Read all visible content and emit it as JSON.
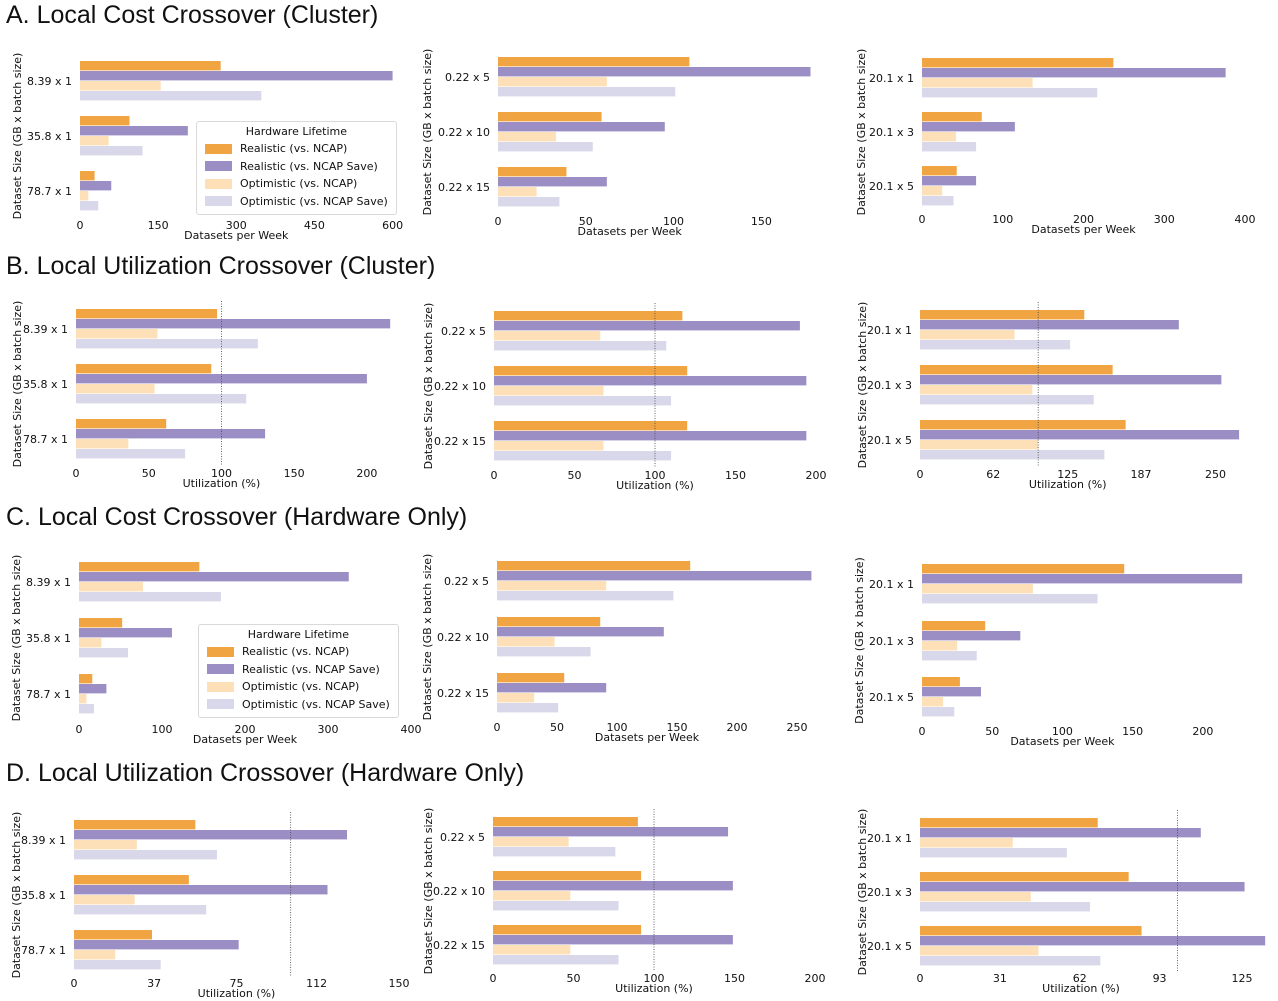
{
  "colors": {
    "realistic_ncap": "#f0a542",
    "realistic_ncap_save": "#9b8ec4",
    "optimistic_ncap": "#fde0b8",
    "optimistic_ncap_save": "#d9d8ea"
  },
  "rows": [
    {
      "title": "A. Local Cost Crossover (Cluster)"
    },
    {
      "title": "B. Local Utilization Crossover (Cluster)"
    },
    {
      "title": "C. Local Cost Crossover (Hardware Only)"
    },
    {
      "title": "D. Local Utilization Crossover (Hardware Only)"
    }
  ],
  "legend": {
    "title": "Hardware Lifetime",
    "items": [
      {
        "label": "Realistic (vs. NCAP)",
        "color": "#f0a542"
      },
      {
        "label": "Realistic (vs. NCAP Save)",
        "color": "#9b8ec4"
      },
      {
        "label": "Optimistic (vs. NCAP)",
        "color": "#fde0b8"
      },
      {
        "label": "Optimistic (vs. NCAP Save)",
        "color": "#d9d8ea"
      }
    ]
  },
  "chart_data": [
    {
      "panel": "A1",
      "type": "bar",
      "orientation": "horizontal",
      "categories": [
        "8.39 x 1",
        "35.8 x 1",
        "78.7 x 1"
      ],
      "series": [
        {
          "name": "Realistic (vs. NCAP)",
          "values": [
            270,
            95,
            28
          ]
        },
        {
          "name": "Realistic (vs. NCAP Save)",
          "values": [
            600,
            207,
            60
          ]
        },
        {
          "name": "Optimistic (vs. NCAP)",
          "values": [
            155,
            55,
            16
          ]
        },
        {
          "name": "Optimistic (vs. NCAP Save)",
          "values": [
            348,
            120,
            35
          ]
        }
      ],
      "xlabel": "Datasets per Week",
      "ylabel": "Dataset Size (GB x batch size)",
      "xlim": [
        0,
        620
      ],
      "xticks": [
        0,
        150,
        300,
        450,
        600
      ],
      "xtick_labels": [
        "0",
        "150",
        "300",
        "450",
        "600"
      ]
    },
    {
      "panel": "A2",
      "type": "bar",
      "orientation": "horizontal",
      "categories": [
        "0.22 x 5",
        "0.22 x 10",
        "0.22 x 15"
      ],
      "series": [
        {
          "name": "Realistic (vs. NCAP)",
          "values": [
            109,
            59,
            39
          ]
        },
        {
          "name": "Realistic (vs. NCAP Save)",
          "values": [
            178,
            95,
            62
          ]
        },
        {
          "name": "Optimistic (vs. NCAP)",
          "values": [
            62,
            33,
            22
          ]
        },
        {
          "name": "Optimistic (vs. NCAP Save)",
          "values": [
            101,
            54,
            35
          ]
        }
      ],
      "xlabel": "Datasets per Week",
      "ylabel": "Dataset Size (GB x batch size)",
      "xlim": [
        0,
        180
      ],
      "xticks": [
        0,
        50,
        100,
        150
      ],
      "xtick_labels": [
        "0",
        "50",
        "100",
        "150"
      ]
    },
    {
      "panel": "A3",
      "type": "bar",
      "orientation": "horizontal",
      "categories": [
        "20.1 x 1",
        "20.1 x 3",
        "20.1 x 5"
      ],
      "series": [
        {
          "name": "Realistic (vs. NCAP)",
          "values": [
            237,
            74,
            43
          ]
        },
        {
          "name": "Realistic (vs. NCAP Save)",
          "values": [
            376,
            115,
            67
          ]
        },
        {
          "name": "Optimistic (vs. NCAP)",
          "values": [
            137,
            42,
            25
          ]
        },
        {
          "name": "Optimistic (vs. NCAP Save)",
          "values": [
            217,
            67,
            39
          ]
        }
      ],
      "xlabel": "Datasets per Week",
      "ylabel": "Dataset Size (GB x batch size)",
      "xlim": [
        0,
        400
      ],
      "xticks": [
        0,
        100,
        200,
        300,
        400
      ],
      "xtick_labels": [
        "0",
        "100",
        "200",
        "300",
        "400"
      ]
    },
    {
      "panel": "B1",
      "type": "bar",
      "orientation": "horizontal",
      "categories": [
        "8.39 x 1",
        "35.8 x 1",
        "78.7 x 1"
      ],
      "series": [
        {
          "name": "Realistic (vs. NCAP)",
          "values": [
            97,
            93,
            62
          ]
        },
        {
          "name": "Realistic (vs. NCAP Save)",
          "values": [
            216,
            200,
            130
          ]
        },
        {
          "name": "Optimistic (vs. NCAP)",
          "values": [
            56,
            54,
            36
          ]
        },
        {
          "name": "Optimistic (vs. NCAP Save)",
          "values": [
            125,
            117,
            75
          ]
        }
      ],
      "xlabel": "Utilization (%)",
      "ylabel": "Dataset Size (GB x batch size)",
      "xlim": [
        0,
        220
      ],
      "xticks": [
        0,
        50,
        100,
        150,
        200
      ],
      "xtick_labels": [
        "0",
        "50",
        "100",
        "150",
        "200"
      ],
      "vline": 100
    },
    {
      "panel": "B2",
      "type": "bar",
      "orientation": "horizontal",
      "categories": [
        "0.22 x 5",
        "0.22 x 10",
        "0.22 x 15"
      ],
      "series": [
        {
          "name": "Realistic (vs. NCAP)",
          "values": [
            117,
            120,
            120
          ]
        },
        {
          "name": "Realistic (vs. NCAP Save)",
          "values": [
            190,
            194,
            194
          ]
        },
        {
          "name": "Optimistic (vs. NCAP)",
          "values": [
            66,
            68,
            68
          ]
        },
        {
          "name": "Optimistic (vs. NCAP Save)",
          "values": [
            107,
            110,
            110
          ]
        }
      ],
      "xlabel": "Utilization (%)",
      "ylabel": "Dataset Size (GB x batch size)",
      "xlim": [
        0,
        200
      ],
      "xticks": [
        0,
        50,
        100,
        150,
        200
      ],
      "xtick_labels": [
        "0",
        "50",
        "100",
        "150",
        "200"
      ],
      "vline": 100
    },
    {
      "panel": "B3",
      "type": "bar",
      "orientation": "horizontal",
      "categories": [
        "20.1 x 1",
        "20.1 x 3",
        "20.1 x 5"
      ],
      "series": [
        {
          "name": "Realistic (vs. NCAP)",
          "values": [
            139,
            163,
            174
          ]
        },
        {
          "name": "Realistic (vs. NCAP Save)",
          "values": [
            219,
            255,
            270
          ]
        },
        {
          "name": "Optimistic (vs. NCAP)",
          "values": [
            80,
            95,
            100
          ]
        },
        {
          "name": "Optimistic (vs. NCAP Save)",
          "values": [
            127,
            147,
            156
          ]
        }
      ],
      "xlabel": "Utilization (%)",
      "ylabel": "Dataset Size (GB x batch size)",
      "xlim": [
        0,
        275
      ],
      "xticks": [
        0,
        62,
        125,
        187,
        250
      ],
      "xtick_labels": [
        "0",
        "62",
        "125",
        "187",
        "250"
      ],
      "vline": 100
    },
    {
      "panel": "C1",
      "type": "bar",
      "orientation": "horizontal",
      "categories": [
        "8.39 x 1",
        "35.8 x 1",
        "78.7 x 1"
      ],
      "series": [
        {
          "name": "Realistic (vs. NCAP)",
          "values": [
            145,
            52,
            16
          ]
        },
        {
          "name": "Realistic (vs. NCAP Save)",
          "values": [
            325,
            112,
            33
          ]
        },
        {
          "name": "Optimistic (vs. NCAP)",
          "values": [
            77,
            27,
            9
          ]
        },
        {
          "name": "Optimistic (vs. NCAP Save)",
          "values": [
            171,
            59,
            18
          ]
        }
      ],
      "xlabel": "Datasets per Week",
      "ylabel": "Dataset Size (GB x batch size)",
      "xlim": [
        0,
        400
      ],
      "xticks": [
        0,
        100,
        200,
        300,
        400
      ],
      "xtick_labels": [
        "0",
        "100",
        "200",
        "300",
        "400"
      ]
    },
    {
      "panel": "C2",
      "type": "bar",
      "orientation": "horizontal",
      "categories": [
        "0.22 x 5",
        "0.22 x 10",
        "0.22 x 15"
      ],
      "series": [
        {
          "name": "Realistic (vs. NCAP)",
          "values": [
            161,
            86,
            56
          ]
        },
        {
          "name": "Realistic (vs. NCAP Save)",
          "values": [
            262,
            139,
            91
          ]
        },
        {
          "name": "Optimistic (vs. NCAP)",
          "values": [
            91,
            48,
            31
          ]
        },
        {
          "name": "Optimistic (vs. NCAP Save)",
          "values": [
            147,
            78,
            51
          ]
        }
      ],
      "xlabel": "Datasets per Week",
      "ylabel": "Dataset Size (GB x batch size)",
      "xlim": [
        0,
        265
      ],
      "xticks": [
        0,
        50,
        100,
        150,
        200,
        250
      ],
      "xtick_labels": [
        "0",
        "50",
        "100",
        "150",
        "200",
        "250"
      ]
    },
    {
      "panel": "C3",
      "type": "bar",
      "orientation": "horizontal",
      "categories": [
        "20.1 x 1",
        "20.1 x 3",
        "20.1 x 5"
      ],
      "series": [
        {
          "name": "Realistic (vs. NCAP)",
          "values": [
            144,
            45,
            27
          ]
        },
        {
          "name": "Realistic (vs. NCAP Save)",
          "values": [
            228,
            70,
            42
          ]
        },
        {
          "name": "Optimistic (vs. NCAP)",
          "values": [
            79,
            25,
            15
          ]
        },
        {
          "name": "Optimistic (vs. NCAP Save)",
          "values": [
            125,
            39,
            23
          ]
        }
      ],
      "xlabel": "Datasets per Week",
      "ylabel": "Dataset Size (GB x batch size)",
      "xlim": [
        0,
        230
      ],
      "xticks": [
        0,
        50,
        100,
        150,
        200
      ],
      "xtick_labels": [
        "0",
        "50",
        "100",
        "150",
        "200"
      ]
    },
    {
      "panel": "D1",
      "type": "bar",
      "orientation": "horizontal",
      "categories": [
        "8.39 x 1",
        "35.8 x 1",
        "78.7 x 1"
      ],
      "series": [
        {
          "name": "Realistic (vs. NCAP)",
          "values": [
            56,
            53,
            36
          ]
        },
        {
          "name": "Realistic (vs. NCAP Save)",
          "values": [
            126,
            117,
            76
          ]
        },
        {
          "name": "Optimistic (vs. NCAP)",
          "values": [
            29,
            28,
            19
          ]
        },
        {
          "name": "Optimistic (vs. NCAP Save)",
          "values": [
            66,
            61,
            40
          ]
        }
      ],
      "xlabel": "Utilization (%)",
      "ylabel": "Dataset Size (GB x batch size)",
      "xlim": [
        0,
        150
      ],
      "xticks": [
        0,
        37,
        75,
        112,
        150
      ],
      "xtick_labels": [
        "0",
        "37",
        "75",
        "112",
        "150"
      ],
      "vline": 100
    },
    {
      "panel": "D2",
      "type": "bar",
      "orientation": "horizontal",
      "categories": [
        "0.22 x 5",
        "0.22 x 10",
        "0.22 x 15"
      ],
      "series": [
        {
          "name": "Realistic (vs. NCAP)",
          "values": [
            90,
            92,
            92
          ]
        },
        {
          "name": "Realistic (vs. NCAP Save)",
          "values": [
            146,
            149,
            149
          ]
        },
        {
          "name": "Optimistic (vs. NCAP)",
          "values": [
            47,
            48,
            48
          ]
        },
        {
          "name": "Optimistic (vs. NCAP Save)",
          "values": [
            76,
            78,
            78
          ]
        }
      ],
      "xlabel": "Utilization (%)",
      "ylabel": "Dataset Size (GB x batch size)",
      "xlim": [
        0,
        200
      ],
      "xticks": [
        0,
        50,
        100,
        150,
        200
      ],
      "xtick_labels": [
        "0",
        "50",
        "100",
        "150",
        "200"
      ],
      "vline": 100
    },
    {
      "panel": "D3",
      "type": "bar",
      "orientation": "horizontal",
      "categories": [
        "20.1 x 1",
        "20.1 x 3",
        "20.1 x 5"
      ],
      "series": [
        {
          "name": "Realistic (vs. NCAP)",
          "values": [
            69,
            81,
            86
          ]
        },
        {
          "name": "Realistic (vs. NCAP Save)",
          "values": [
            109,
            126,
            134
          ]
        },
        {
          "name": "Optimistic (vs. NCAP)",
          "values": [
            36,
            43,
            46
          ]
        },
        {
          "name": "Optimistic (vs. NCAP Save)",
          "values": [
            57,
            66,
            70
          ]
        }
      ],
      "xlabel": "Utilization (%)",
      "ylabel": "Dataset Size (GB x batch size)",
      "xlim": [
        0,
        125
      ],
      "xticks": [
        0,
        31,
        62,
        93,
        125
      ],
      "xtick_labels": [
        "0",
        "31",
        "62",
        "93",
        "125"
      ],
      "vline": 100
    }
  ]
}
